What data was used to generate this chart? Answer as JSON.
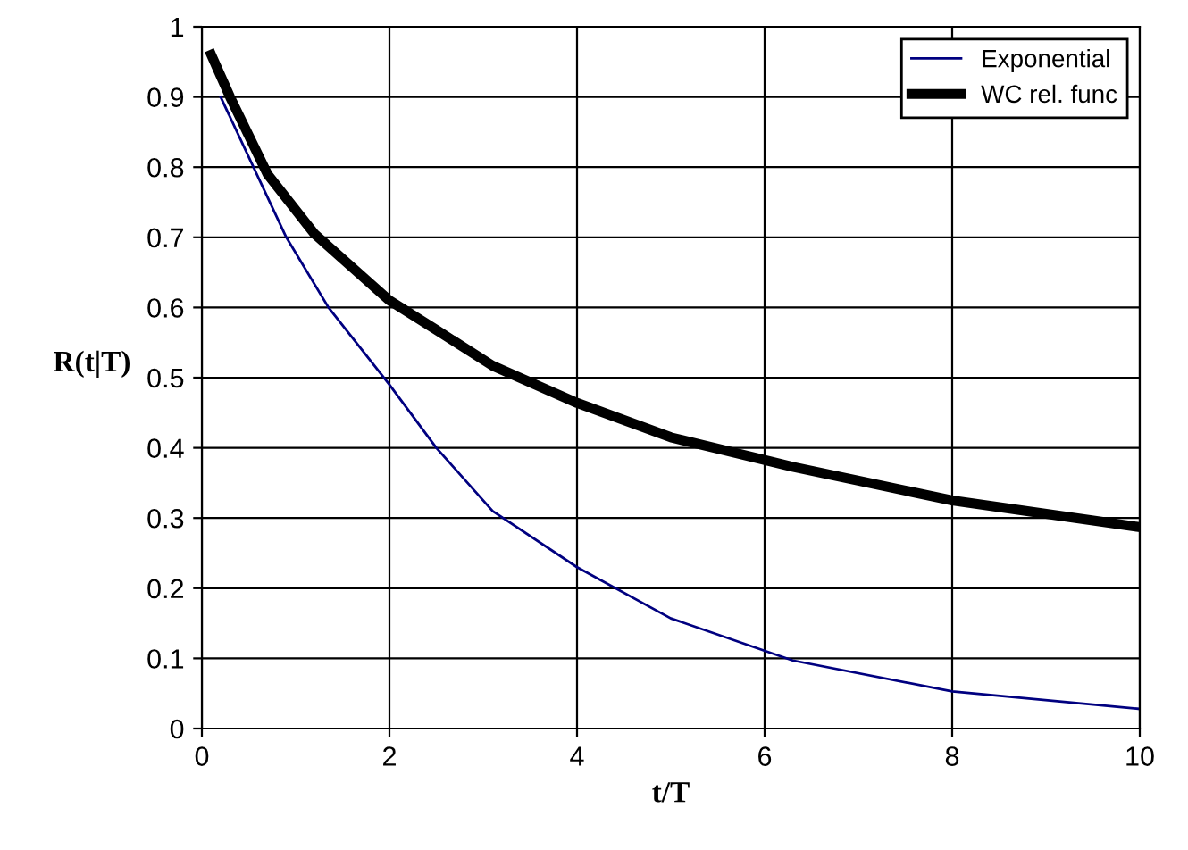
{
  "chart_data": {
    "type": "line",
    "xlabel": "t/T",
    "ylabel": "R(t|T)",
    "xlim": [
      0,
      10
    ],
    "xticks": [
      0,
      2,
      4,
      6,
      8,
      10
    ],
    "ylim": [
      0,
      1
    ],
    "yticks": [
      0,
      0.1,
      0.2,
      0.3,
      0.4,
      0.5,
      0.6,
      0.7,
      0.8,
      0.9,
      1
    ],
    "grid": true,
    "legend": "top right",
    "marker": "none",
    "line_style": "solid",
    "series": [
      {
        "name": "Exponential",
        "color": "#000080",
        "x": [
          0.2,
          0.9,
          1.35,
          2,
          2.5,
          3.1,
          4,
          5,
          6.3,
          8,
          10
        ],
        "values": [
          0.9,
          0.7,
          0.6,
          0.49,
          0.4,
          0.31,
          0.23,
          0.157,
          0.097,
          0.053,
          0.028
        ]
      },
      {
        "name": "WC rel. func",
        "color": "#000000",
        "x": [
          0.1,
          0.2,
          0.3,
          0.7,
          1.2,
          2,
          2.5,
          3.1,
          4,
          5,
          6.3,
          8,
          10
        ],
        "values": [
          0.96,
          0.93,
          0.9,
          0.79,
          0.705,
          0.61,
          0.568,
          0.517,
          0.464,
          0.415,
          0.373,
          0.325,
          0.287
        ]
      }
    ]
  }
}
